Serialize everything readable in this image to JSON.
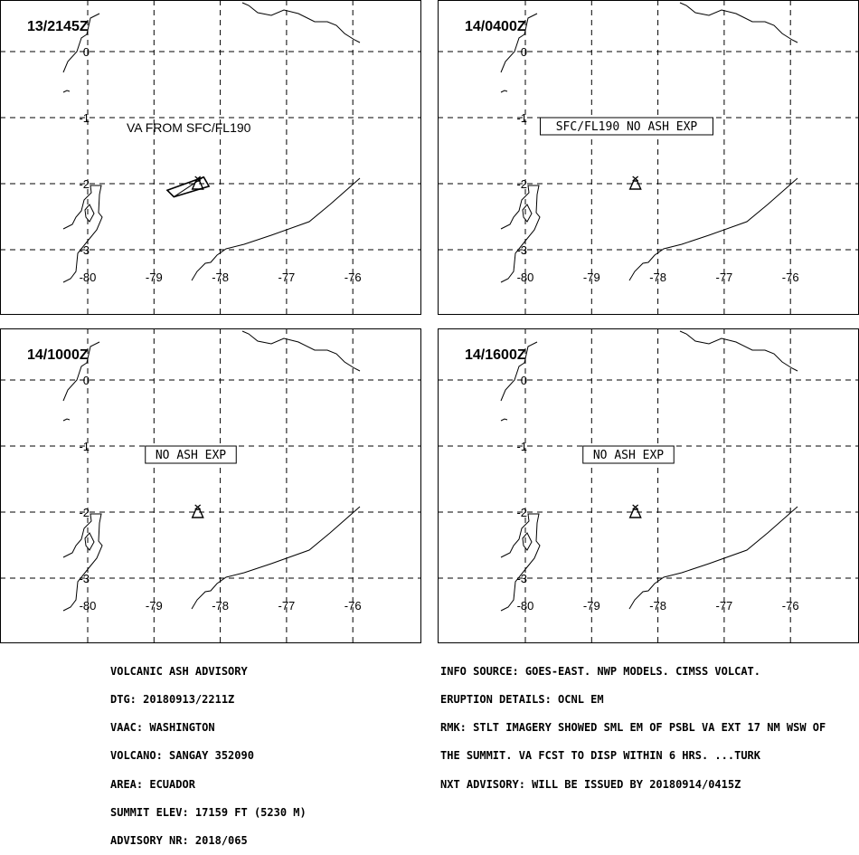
{
  "panels": [
    {
      "time_label": "13/2145Z",
      "annotation": "VA FROM SFC/FL190",
      "annotation_boxed": false,
      "ash_polygon": [
        [
          -78.8,
          -2.1
        ],
        [
          -78.25,
          -1.9
        ],
        [
          -78.17,
          -2.04
        ],
        [
          -78.7,
          -2.2
        ]
      ],
      "volcano_symbol": "volcano-icon"
    },
    {
      "time_label": "14/0400Z",
      "annotation": "SFC/FL190 NO ASH EXP",
      "annotation_boxed": true,
      "ash_polygon": [],
      "volcano_symbol": "volcano-icon"
    },
    {
      "time_label": "14/1000Z",
      "annotation": "NO ASH EXP",
      "annotation_boxed": true,
      "ash_polygon": [],
      "volcano_symbol": "volcano-icon"
    },
    {
      "time_label": "14/1600Z",
      "annotation": "NO ASH EXP",
      "annotation_boxed": true,
      "ash_polygon": [],
      "volcano_symbol": "volcano-icon"
    }
  ],
  "map": {
    "lon_labels": [
      "-80",
      "-79",
      "-78",
      "-77",
      "-76"
    ],
    "lat_labels": [
      "0",
      "-1",
      "-2",
      "-3"
    ],
    "volcano_lon": -78.34,
    "volcano_lat": -2.0
  },
  "advisory_left": [
    "VOLCANIC ASH ADVISORY",
    "DTG: 20180913/2211Z",
    "VAAC: WASHINGTON",
    "VOLCANO: SANGAY 352090",
    "AREA: ECUADOR",
    "SUMMIT ELEV: 17159 FT (5230 M)",
    "ADVISORY NR: 2018/065"
  ],
  "advisory_right": [
    "INFO SOURCE: GOES-EAST. NWP MODELS. CIMSS VOLCAT.",
    "ERUPTION DETAILS: OCNL EM",
    "RMK: STLT IMAGERY SHOWED SML EM OF PSBL VA EXT 17 NM WSW OF",
    "THE SUMMIT. VA FCST TO DISP WITHIN 6 HRS. ...TURK",
    "NXT ADVISORY: WILL BE ISSUED BY 20180914/0415Z"
  ]
}
